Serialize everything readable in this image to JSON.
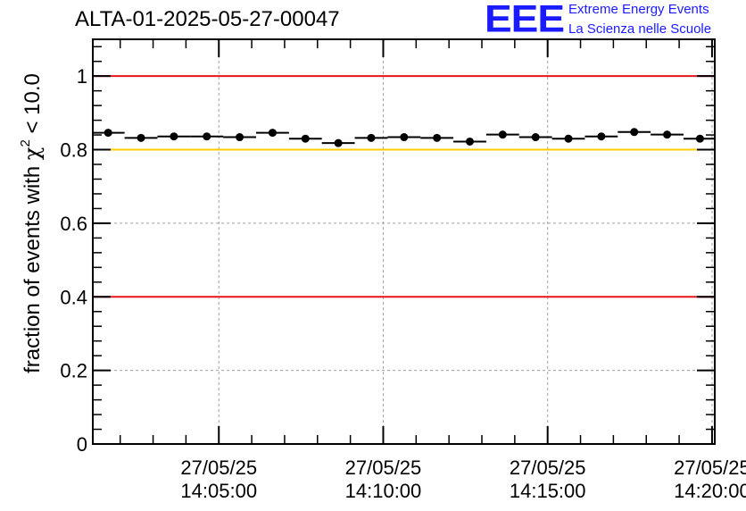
{
  "header": {
    "run_title": "ALTA-01-2025-05-27-00047",
    "logo_mark": "EEE",
    "logo_line1": "Extreme Energy Events",
    "logo_line2": "La Scienza nelle Scuole"
  },
  "colors": {
    "red_line": "#e8141a",
    "yellow_line": "#ffcc00",
    "logo_blue": "#1b1bff",
    "marker": "#000000",
    "grid": "#a0a0a0"
  },
  "chart_data": {
    "type": "scatter",
    "title": "ALTA-01-2025-05-27-00047",
    "ylabel": "fraction of events with χ² < 10.0",
    "ylabel_parts": {
      "before": "fraction of events with ",
      "symbol": "χ",
      "sup": "2",
      "after": " < 10.0"
    },
    "xlabel": "",
    "x_range": [
      "2025-05-27 14:01:10",
      "2025-05-27 14:20:05"
    ],
    "ylim": [
      0,
      1.1
    ],
    "y_ticks": [
      0,
      0.2,
      0.4,
      0.6,
      0.8,
      1
    ],
    "y_tick_labels": [
      "0",
      "0.2",
      "0.4",
      "0.6",
      "0.8",
      "1"
    ],
    "x_ticks": [
      "2025-05-27 14:05:00",
      "2025-05-27 14:10:00",
      "2025-05-27 14:15:00",
      "2025-05-27 14:20:00"
    ],
    "x_tick_labels": [
      {
        "date": "27/05/25",
        "time": "14:05:00"
      },
      {
        "date": "27/05/25",
        "time": "14:10:00"
      },
      {
        "date": "27/05/25",
        "time": "14:15:00"
      },
      {
        "date": "27/05/25",
        "time": "14:20:00"
      }
    ],
    "grid": true,
    "reference_lines": [
      {
        "y": 1.0,
        "color": "#e8141a"
      },
      {
        "y": 0.8,
        "color": "#ffcc00"
      },
      {
        "y": 0.4,
        "color": "#e8141a"
      }
    ],
    "series": [
      {
        "marker": "circle",
        "x_error": "bin half-width",
        "x": [
          "2025-05-27 14:01:38",
          "2025-05-27 14:02:38",
          "2025-05-27 14:03:38",
          "2025-05-27 14:04:38",
          "2025-05-27 14:05:38",
          "2025-05-27 14:06:38",
          "2025-05-27 14:07:38",
          "2025-05-27 14:08:38",
          "2025-05-27 14:09:38",
          "2025-05-27 14:10:38",
          "2025-05-27 14:11:38",
          "2025-05-27 14:12:38",
          "2025-05-27 14:13:38",
          "2025-05-27 14:14:38",
          "2025-05-27 14:15:38",
          "2025-05-27 14:16:38",
          "2025-05-27 14:17:38",
          "2025-05-27 14:18:38",
          "2025-05-27 14:19:38"
        ],
        "values": [
          0.846,
          0.832,
          0.836,
          0.836,
          0.834,
          0.846,
          0.83,
          0.818,
          0.832,
          0.834,
          0.832,
          0.822,
          0.841,
          0.834,
          0.83,
          0.836,
          0.848,
          0.841,
          0.83
        ]
      }
    ]
  }
}
